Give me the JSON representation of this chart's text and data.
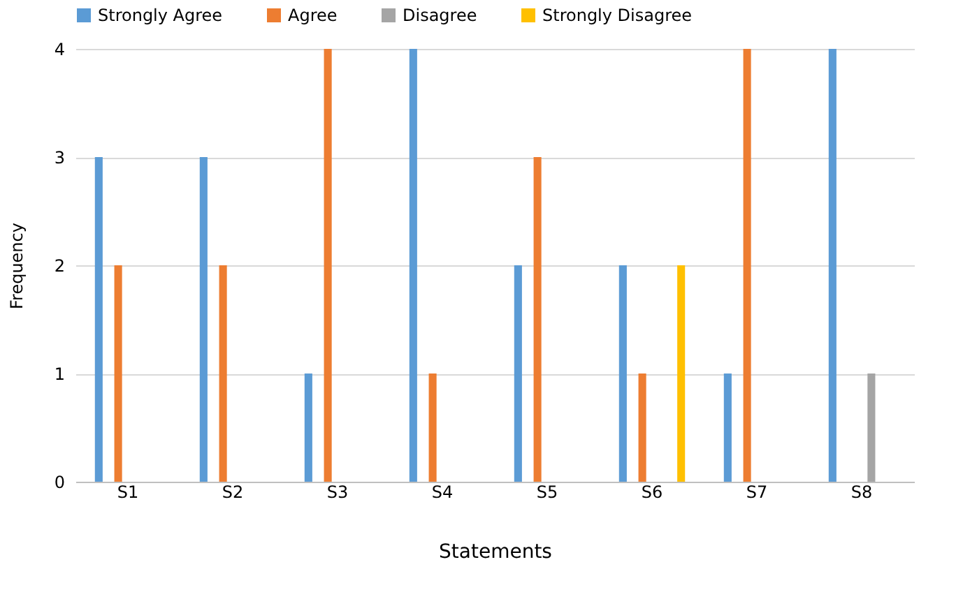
{
  "chart_data": {
    "type": "bar",
    "xlabel": "Statements",
    "ylabel": "Frequency",
    "categories": [
      "S1",
      "S2",
      "S3",
      "S4",
      "S5",
      "S6",
      "S7",
      "S8"
    ],
    "series": [
      {
        "name": "Strongly Agree",
        "color": "#5b9bd5",
        "values": [
          3,
          3,
          1,
          4,
          2,
          2,
          1,
          4
        ]
      },
      {
        "name": "Agree",
        "color": "#ed7d31",
        "values": [
          2,
          2,
          4,
          1,
          3,
          1,
          4,
          0
        ]
      },
      {
        "name": "Disagree",
        "color": "#a5a5a5",
        "values": [
          0,
          0,
          0,
          0,
          0,
          0,
          0,
          1
        ]
      },
      {
        "name": "Strongly Disagree",
        "color": "#ffc000",
        "values": [
          0,
          0,
          0,
          0,
          0,
          2,
          0,
          0
        ]
      }
    ],
    "ylim": [
      0,
      4
    ],
    "yticks": [
      0,
      1,
      2,
      3,
      4
    ],
    "grid": "y",
    "legend": "top"
  }
}
